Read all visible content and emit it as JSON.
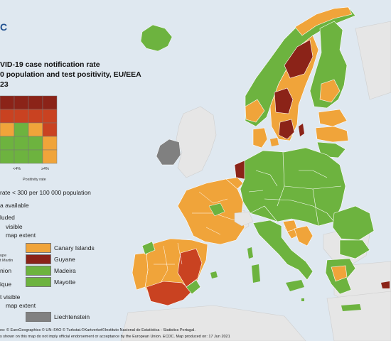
{
  "header": {
    "logo_text": "C",
    "title_line1": "VID-19 case notification rate",
    "title_line2": "0 population and test positivity, EU/EEA",
    "title_line3": "23"
  },
  "legend": {
    "axis_low": "<4%",
    "axis_high": "≥4%",
    "axis_title": "Positivity rate",
    "rate_note": "rate < 300 per 100 000 population",
    "no_data": "a available",
    "not_included": "luded",
    "visible_heading1": "visible",
    "visible_heading2": "map extent",
    "left_frag_1": "upe",
    "left_frag_2": "t Martin",
    "left_frag_3": "nion",
    "left_frag_4": "ique",
    "not_visible_heading1": "t visible",
    "not_visible_heading2": "map extent",
    "regions": [
      {
        "name": "Canary Islands",
        "color": "#f0a43a"
      },
      {
        "name": "Guyane",
        "color": "#8b2318"
      },
      {
        "name": "Madeira",
        "color": "#6db33f"
      },
      {
        "name": "Mayotte",
        "color": "#6db33f"
      },
      {
        "name": "Liechtenstein",
        "color": "#808080"
      }
    ]
  },
  "colors": {
    "dark_red": "#8b2318",
    "red": "#c94221",
    "orange": "#f0a43a",
    "green": "#6db33f",
    "grey": "#808080",
    "sea": "#dfe8f0",
    "land_other": "#e6e6e6"
  },
  "footer": {
    "line1": "es: © EuroGeographics © UN–FAO © Turkstat.©Kartverket©Instituto Nacional de Estatística - Statistics Portugal.",
    "line2": "s shown on this map do not imply official endorsement or acceptance by the European Union. ECDC. Map produced on: 17 Jun 2021"
  }
}
